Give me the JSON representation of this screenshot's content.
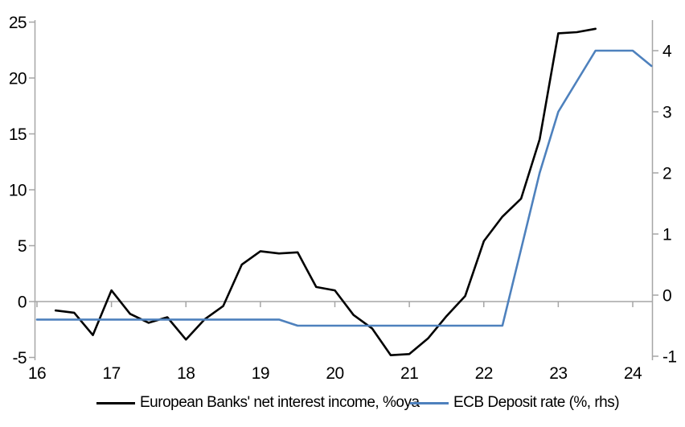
{
  "colors": {
    "nii_line": "#000000",
    "ecb_line": "#4E81BD",
    "axis": "#A6A6A6",
    "text": "#000000",
    "background": "#FFFFFF"
  },
  "chart_data": {
    "type": "line",
    "title": "",
    "grid": "off",
    "legend_position": "bottom",
    "x_axis": {
      "ticks": [
        16,
        17,
        18,
        19,
        20,
        21,
        22,
        23,
        24
      ],
      "tick_labels": [
        "16",
        "17",
        "18",
        "19",
        "20",
        "21",
        "22",
        "23",
        "24"
      ],
      "range": [
        15.97,
        24.3
      ]
    },
    "left_axis": {
      "ticks": [
        -5,
        0,
        5,
        10,
        15,
        20,
        25
      ],
      "tick_labels": [
        "-5",
        "0",
        "5",
        "10",
        "15",
        "20",
        "25"
      ],
      "range": [
        -5.2,
        25.2
      ]
    },
    "right_axis": {
      "ticks": [
        -1,
        0,
        1,
        2,
        3,
        4
      ],
      "tick_labels": [
        "-1",
        "0",
        "1",
        "2",
        "3",
        "4"
      ],
      "range": [
        -1.07,
        4.5
      ]
    },
    "series": [
      {
        "name": "European Banks' net interest income, %oya",
        "axis": "left",
        "color": "#000000",
        "x": [
          16.25,
          16.5,
          16.75,
          17.0,
          17.25,
          17.5,
          17.75,
          18.0,
          18.25,
          18.5,
          18.75,
          19.0,
          19.25,
          19.5,
          19.75,
          20.0,
          20.25,
          20.5,
          20.75,
          21.0,
          21.25,
          21.5,
          21.75,
          22.0,
          22.25,
          22.5,
          22.75,
          23.0,
          23.25,
          23.5
        ],
        "values": [
          -0.8,
          -1.0,
          -3.0,
          1.0,
          -1.1,
          -1.9,
          -1.4,
          -3.4,
          -1.6,
          -0.4,
          3.3,
          4.5,
          4.3,
          4.4,
          1.3,
          1.0,
          -1.2,
          -2.4,
          -4.8,
          -4.7,
          -3.3,
          -1.3,
          0.5,
          5.4,
          7.6,
          9.2,
          14.5,
          24.0,
          24.1,
          24.4
        ]
      },
      {
        "name": "ECB Deposit rate (%, rhs)",
        "axis": "right",
        "color": "#4E81BD",
        "x": [
          16.0,
          16.25,
          16.5,
          16.75,
          17.0,
          17.25,
          17.5,
          17.75,
          18.0,
          18.25,
          18.5,
          18.75,
          19.0,
          19.25,
          19.5,
          19.75,
          20.0,
          20.25,
          20.5,
          20.75,
          21.0,
          21.25,
          21.5,
          21.75,
          22.0,
          22.25,
          22.5,
          22.75,
          23.0,
          23.25,
          23.5,
          23.75,
          24.0,
          24.25
        ],
        "values": [
          -0.4,
          -0.4,
          -0.4,
          -0.4,
          -0.4,
          -0.4,
          -0.4,
          -0.4,
          -0.4,
          -0.4,
          -0.4,
          -0.4,
          -0.4,
          -0.4,
          -0.5,
          -0.5,
          -0.5,
          -0.5,
          -0.5,
          -0.5,
          -0.5,
          -0.5,
          -0.5,
          -0.5,
          -0.5,
          -0.5,
          0.75,
          2.0,
          3.0,
          3.5,
          4.0,
          4.0,
          4.0,
          3.75
        ]
      }
    ]
  }
}
